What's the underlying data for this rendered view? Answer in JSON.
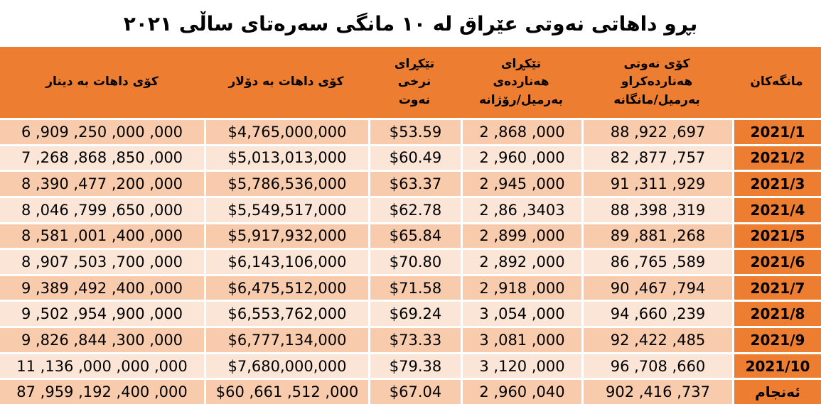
{
  "title": "بڕو داهاتی نەوتی عێراق لە ١٠ مانگی سەرەتای ساڵی ٢٠٢١",
  "colors": {
    "header_bg": "#ED7D31",
    "month_column_bg": "#ED7D31",
    "row_dark": "#F8CBAD",
    "row_light": "#FBE5D6",
    "grid_line": "#FFFFFF",
    "text": "#000000"
  },
  "table": {
    "columns": [
      {
        "key": "month",
        "label": "مانگەکان"
      },
      {
        "key": "monthly_export_barrels",
        "label": "کۆی نەوتی\nهەناردەکراو\nبەرمیل/مانگانە"
      },
      {
        "key": "daily_export_barrels",
        "label": "تێکڕای\nهەناردەی\nبەرمیل/رۆژانە"
      },
      {
        "key": "avg_oil_price",
        "label": "تێکڕای\nنرخی\nنەوت"
      },
      {
        "key": "revenue_dollar",
        "label": "کۆی داهات بە دۆلار"
      },
      {
        "key": "revenue_dinar",
        "label": "کۆی داهات بە دینار"
      }
    ],
    "rows": [
      [
        "2021/1",
        "88 ,922 ,697",
        "2 ,868 ,000",
        "$53.59",
        "$4,765,000,000",
        "6 ,909 ,250 ,000 ,000"
      ],
      [
        "2021/2",
        "82 ,877 ,757",
        "2 ,960 ,000",
        "$60.49",
        "$5,013,013,000",
        "7 ,268 ,868 ,850 ,000"
      ],
      [
        "2021/3",
        "91 ,311 ,929",
        "2 ,945 ,000",
        "$63.37",
        "$5,786,536,000",
        "8 ,390 ,477 ,200 ,000"
      ],
      [
        "2021/4",
        "88 ,398 ,319",
        "2 ,86 ,3403",
        "$62.78",
        "$5,549,517,000",
        "8 ,046 ,799 ,650 ,000"
      ],
      [
        "2021/5",
        "89 ,881 ,268",
        "2 ,899 ,000",
        "$65.84",
        "$5,917,932,000",
        "8 ,581 ,001 ,400 ,000"
      ],
      [
        "2021/6",
        "86 ,765 ,589",
        "2 ,892 ,000",
        "$70.80",
        "$6,143,106,000",
        "8 ,907 ,503 ,700 ,000"
      ],
      [
        "2021/7",
        "90 ,467 ,794",
        "2 ,918 ,000",
        "$71.58",
        "$6,475,512,000",
        "9 ,389 ,492 ,400 ,000"
      ],
      [
        "2021/8",
        "94 ,660 ,239",
        "3 ,054 ,000",
        "$69.24",
        "$6,553,762,000",
        "9 ,502 ,954 ,900 ,000"
      ],
      [
        "2021/9",
        "92 ,422 ,485",
        "3 ,081 ,000",
        "$73.33",
        "$6,777,134,000",
        "9 ,826 ,844 ,300 ,000"
      ],
      [
        "2021/10",
        "96 ,708 ,660",
        "3 ,120 ,000",
        "$79.38",
        "$7,680,000,000",
        "11 ,136 ,000 ,000 ,000"
      ],
      [
        "ئەنجام",
        "902 ,416 ,737",
        "2 ,960 ,040",
        "$67.04",
        "$60 ,661 ,512 ,000",
        "87 ,959 ,192 ,400 ,000"
      ]
    ],
    "total_row_label": "ئەنجام"
  }
}
